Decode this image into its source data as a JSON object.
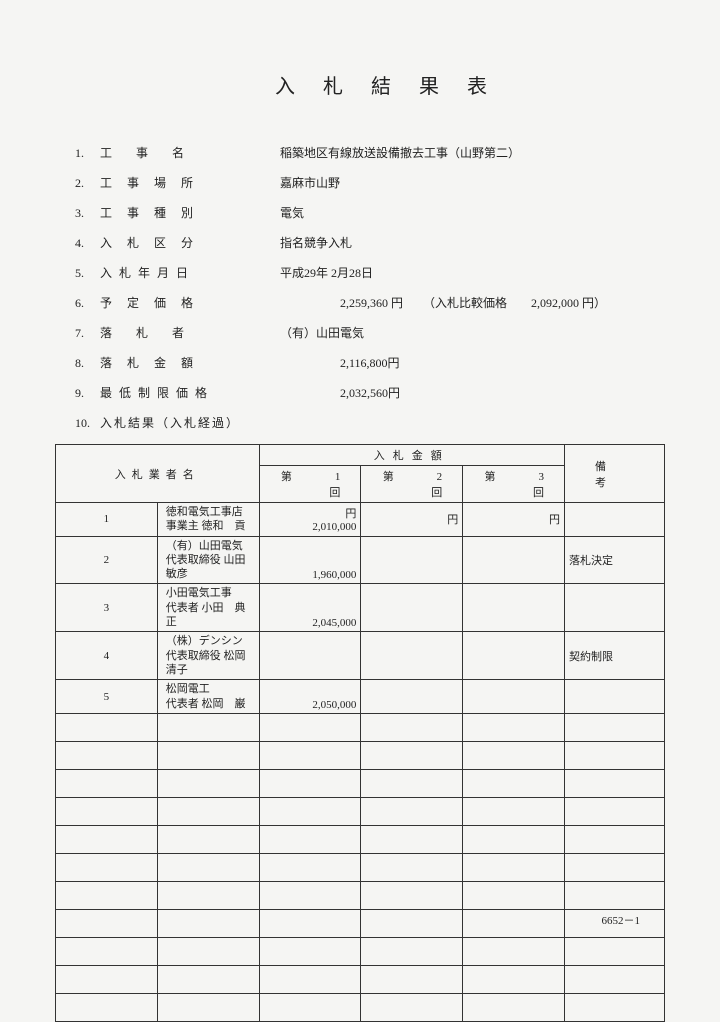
{
  "title": "入札結果表",
  "info": [
    {
      "num": "1.",
      "label": "工　事　名",
      "value": "稲築地区有線放送設備撤去工事（山野第二）",
      "labelClass": "info-label"
    },
    {
      "num": "2.",
      "label": "工 事 場 所",
      "value": "嘉麻市山野",
      "labelClass": "info-label"
    },
    {
      "num": "3.",
      "label": "工 事 種 別",
      "value": "電気",
      "labelClass": "info-label"
    },
    {
      "num": "4.",
      "label": "入 札 区 分",
      "value": "指名競争入札",
      "labelClass": "info-label"
    },
    {
      "num": "5.",
      "label": "入 札 年 月 日",
      "value": "平成29年 2月28日",
      "labelClass": "info-label-tight"
    },
    {
      "num": "6.",
      "label": "予 定 価 格",
      "value": "2,259,360 円",
      "labelClass": "info-label",
      "indent": true,
      "comparison_label": "（入札比較価格",
      "comparison_value": "2,092,000 円）"
    },
    {
      "num": "7.",
      "label": "落　札　者",
      "value": "（有）山田電気",
      "labelClass": "info-label"
    },
    {
      "num": "8.",
      "label": "落 札 金 額",
      "value": "2,116,800円",
      "labelClass": "info-label",
      "indent": true
    },
    {
      "num": "9.",
      "label": "最 低 制 限 価 格",
      "value": "2,032,560円",
      "labelClass": "info-label-tight",
      "indent": true
    },
    {
      "num": "10.",
      "label": "入札結果（入札経過）",
      "value": "",
      "labelClass": "info-label-tight"
    }
  ],
  "table": {
    "headers": {
      "bidder": "入札業者名",
      "amount": "入札金額",
      "round1": "第　1　回",
      "round2": "第　2　回",
      "round3": "第　3　回",
      "remarks": "備考",
      "yen": "円"
    },
    "rows": [
      {
        "idx": "1",
        "name1": "徳和電気工事店",
        "name2": "事業主 徳和　貢",
        "bid1": "2,010,000",
        "bid2": "",
        "bid3": "",
        "remarks": ""
      },
      {
        "idx": "2",
        "name1": "（有）山田電気",
        "name2": "代表取締役 山田　敏彦",
        "bid1": "1,960,000",
        "bid2": "",
        "bid3": "",
        "remarks": "落札決定"
      },
      {
        "idx": "3",
        "name1": "小田電気工事",
        "name2": "代表者 小田　典正",
        "bid1": "2,045,000",
        "bid2": "",
        "bid3": "",
        "remarks": ""
      },
      {
        "idx": "4",
        "name1": "（株）デンシン",
        "name2": "代表取締役 松岡　清子",
        "bid1": "",
        "bid2": "",
        "bid3": "",
        "remarks": "契約制限"
      },
      {
        "idx": "5",
        "name1": "松岡電工",
        "name2": "代表者 松岡　巌",
        "bid1": "2,050,000",
        "bid2": "",
        "bid3": "",
        "remarks": ""
      }
    ],
    "empty_rows": 11
  },
  "page_num": "6652－1"
}
